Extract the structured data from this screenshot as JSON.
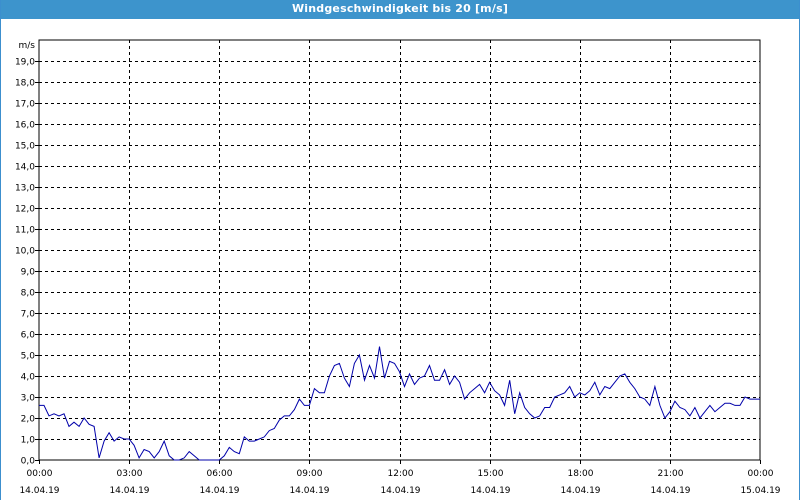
{
  "window": {
    "title": "Windgeschwindigkeit bis 20 [m/s]"
  },
  "chart_data": {
    "type": "line",
    "title": "Windgeschwindigkeit bis 20 [m/s]",
    "ylabel": "m/s",
    "xlabel": "",
    "ylim": [
      0,
      20
    ],
    "xlim_hours": [
      0,
      24
    ],
    "grid": true,
    "line_color": "#0000aa",
    "y_ticks": [
      "0,0",
      "1,0",
      "2,0",
      "3,0",
      "4,0",
      "5,0",
      "6,0",
      "7,0",
      "8,0",
      "9,0",
      "10,0",
      "11,0",
      "12,0",
      "13,0",
      "14,0",
      "15,0",
      "16,0",
      "17,0",
      "18,0",
      "19,0"
    ],
    "x_ticks": [
      {
        "time": "00:00",
        "date": "14.04.19"
      },
      {
        "time": "03:00",
        "date": "14.04.19"
      },
      {
        "time": "06:00",
        "date": "14.04.19"
      },
      {
        "time": "09:00",
        "date": "14.04.19"
      },
      {
        "time": "12:00",
        "date": "14.04.19"
      },
      {
        "time": "15:00",
        "date": "14.04.19"
      },
      {
        "time": "18:00",
        "date": "14.04.19"
      },
      {
        "time": "21:00",
        "date": "14.04.19"
      },
      {
        "time": "00:00",
        "date": "15.04.19"
      }
    ],
    "series": [
      {
        "name": "",
        "x": [
          "00:00",
          "00:10",
          "00:20",
          "00:30",
          "00:40",
          "00:50",
          "01:00",
          "01:10",
          "01:20",
          "01:30",
          "01:40",
          "01:50",
          "02:00",
          "02:10",
          "02:20",
          "02:30",
          "02:40",
          "02:50",
          "03:00",
          "03:10",
          "03:20",
          "03:30",
          "03:40",
          "03:50",
          "04:00",
          "04:10",
          "04:20",
          "04:30",
          "04:40",
          "04:50",
          "05:00",
          "05:10",
          "05:20",
          "05:30",
          "05:40",
          "05:50",
          "06:00",
          "06:10",
          "06:20",
          "06:30",
          "06:40",
          "06:50",
          "07:00",
          "07:10",
          "07:20",
          "07:30",
          "07:40",
          "07:50",
          "08:00",
          "08:10",
          "08:20",
          "08:30",
          "08:40",
          "08:50",
          "09:00",
          "09:10",
          "09:20",
          "09:30",
          "09:40",
          "09:50",
          "10:00",
          "10:10",
          "10:20",
          "10:30",
          "10:40",
          "10:50",
          "11:00",
          "11:10",
          "11:20",
          "11:30",
          "11:40",
          "11:50",
          "12:00",
          "12:10",
          "12:20",
          "12:30",
          "12:40",
          "12:50",
          "13:00",
          "13:10",
          "13:20",
          "13:30",
          "13:40",
          "13:50",
          "14:00",
          "14:10",
          "14:20",
          "14:30",
          "14:40",
          "14:50",
          "15:00",
          "15:10",
          "15:20",
          "15:30",
          "15:40",
          "15:50",
          "16:00",
          "16:10",
          "16:20",
          "16:30",
          "16:40",
          "16:50",
          "17:00",
          "17:10",
          "17:20",
          "17:30",
          "17:40",
          "17:50",
          "18:00",
          "18:10",
          "18:20",
          "18:30",
          "18:40",
          "18:50",
          "19:00",
          "19:10",
          "19:20",
          "19:30",
          "19:40",
          "19:50",
          "20:00",
          "20:10",
          "20:20",
          "20:30",
          "20:40",
          "20:50",
          "21:00",
          "21:10",
          "21:20",
          "21:30",
          "21:40",
          "21:50",
          "22:00",
          "22:10",
          "22:20",
          "22:30",
          "22:40",
          "22:50",
          "23:00",
          "23:10",
          "23:20",
          "23:30",
          "23:40",
          "23:50",
          "24:00"
        ],
        "values": [
          2.6,
          2.6,
          2.1,
          2.2,
          2.1,
          2.2,
          1.6,
          1.8,
          1.6,
          2.0,
          1.7,
          1.6,
          0.1,
          0.9,
          1.3,
          0.9,
          1.1,
          1.0,
          1.0,
          0.7,
          0.1,
          0.5,
          0.4,
          0.1,
          0.4,
          0.9,
          0.2,
          0.0,
          0.0,
          0.1,
          0.4,
          0.2,
          0.0,
          0.0,
          0.0,
          0.0,
          0.0,
          0.2,
          0.6,
          0.4,
          0.3,
          1.1,
          0.9,
          0.9,
          1.0,
          1.1,
          1.4,
          1.5,
          1.9,
          2.1,
          2.1,
          2.4,
          2.9,
          2.6,
          2.6,
          3.4,
          3.2,
          3.2,
          4.0,
          4.5,
          4.6,
          3.9,
          3.5,
          4.6,
          5.0,
          3.8,
          4.5,
          3.9,
          5.4,
          3.9,
          4.7,
          4.6,
          4.2,
          3.5,
          4.1,
          3.6,
          3.9,
          4.0,
          4.5,
          3.8,
          3.8,
          4.3,
          3.6,
          4.0,
          3.7,
          2.9,
          3.2,
          3.4,
          3.6,
          3.2,
          3.7,
          3.3,
          3.1,
          2.6,
          3.8,
          2.2,
          3.2,
          2.5,
          2.2,
          2.0,
          2.1,
          2.5,
          2.5,
          3.0,
          3.1,
          3.2,
          3.5,
          3.0,
          3.2,
          3.1,
          3.3,
          3.7,
          3.1,
          3.5,
          3.4,
          3.7,
          4.0,
          4.1,
          3.7,
          3.4,
          3.0,
          2.9,
          2.6,
          3.5,
          2.6,
          2.0,
          2.3,
          2.8,
          2.5,
          2.4,
          2.1,
          2.5,
          2.0,
          2.3,
          2.6,
          2.3,
          2.5,
          2.7,
          2.7,
          2.6,
          2.6,
          3.0,
          2.9,
          2.9,
          2.9
        ]
      }
    ]
  }
}
